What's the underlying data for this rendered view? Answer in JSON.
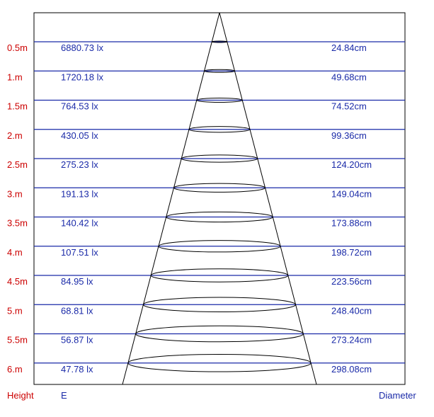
{
  "rows": [
    {
      "height": "0.5m",
      "illuminance": "6880.73 lx",
      "diameter": "24.84cm"
    },
    {
      "height": "1.m",
      "illuminance": "1720.18 lx",
      "diameter": "49.68cm"
    },
    {
      "height": "1.5m",
      "illuminance": "764.53 lx",
      "diameter": "74.52cm"
    },
    {
      "height": "2.m",
      "illuminance": "430.05 lx",
      "diameter": "99.36cm"
    },
    {
      "height": "2.5m",
      "illuminance": "275.23 lx",
      "diameter": "124.20cm"
    },
    {
      "height": "3.m",
      "illuminance": "191.13 lx",
      "diameter": "149.04cm"
    },
    {
      "height": "3.5m",
      "illuminance": "140.42 lx",
      "diameter": "173.88cm"
    },
    {
      "height": "4.m",
      "illuminance": "107.51 lx",
      "diameter": "198.72cm"
    },
    {
      "height": "4.5m",
      "illuminance": "84.95 lx",
      "diameter": "223.56cm"
    },
    {
      "height": "5.m",
      "illuminance": "68.81 lx",
      "diameter": "248.40cm"
    },
    {
      "height": "5.5m",
      "illuminance": "56.87 lx",
      "diameter": "273.24cm"
    },
    {
      "height": "6.m",
      "illuminance": "47.78 lx",
      "diameter": "298.08cm"
    }
  ],
  "footer": {
    "height_label": "Height",
    "illuminance_label": "E",
    "diameter_label": "Diameter"
  },
  "colors": {
    "height_text": "#cc0000",
    "value_text": "#1a2aa8",
    "grid_line": "#1a2aa8",
    "cone": "#000000"
  }
}
